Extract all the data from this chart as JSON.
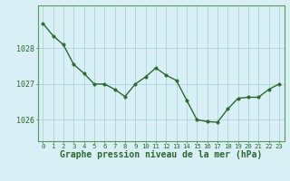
{
  "x": [
    0,
    1,
    2,
    3,
    4,
    5,
    6,
    7,
    8,
    9,
    10,
    11,
    12,
    13,
    14,
    15,
    16,
    17,
    18,
    19,
    20,
    21,
    22,
    23
  ],
  "y": [
    1028.7,
    1028.35,
    1028.1,
    1027.55,
    1027.3,
    1027.0,
    1027.0,
    1026.85,
    1026.65,
    1027.0,
    1027.2,
    1027.45,
    1027.25,
    1027.1,
    1026.55,
    1026.0,
    1025.95,
    1025.93,
    1026.3,
    1026.6,
    1026.63,
    1026.63,
    1026.85,
    1027.0
  ],
  "line_color": "#2d6a2d",
  "marker_color": "#2d6a2d",
  "bg_color": "#d7eff5",
  "grid_color": "#acd4dc",
  "axis_color": "#2d6a2d",
  "border_color": "#5a9a5a",
  "xlabel": "Graphe pression niveau de la mer (hPa)",
  "xlabel_fontsize": 7.0,
  "yticks": [
    1026,
    1027,
    1028
  ],
  "ytick_labels": [
    "1026",
    "1027",
    "1028"
  ],
  "xticks": [
    0,
    1,
    2,
    3,
    4,
    5,
    6,
    7,
    8,
    9,
    10,
    11,
    12,
    13,
    14,
    15,
    16,
    17,
    18,
    19,
    20,
    21,
    22,
    23
  ],
  "ylim": [
    1025.4,
    1029.2
  ],
  "xlim": [
    -0.5,
    23.5
  ],
  "xtick_fontsize": 5.2,
  "ytick_fontsize": 6.0,
  "line_width": 1.0,
  "marker_size": 2.5
}
